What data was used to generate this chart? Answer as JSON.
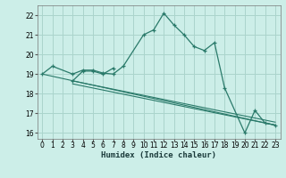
{
  "xlabel": "Humidex (Indice chaleur)",
  "background_color": "#cceee8",
  "grid_color": "#aad4cc",
  "line_color": "#2a7a6a",
  "xlim": [
    -0.5,
    23.5
  ],
  "ylim": [
    15.7,
    22.5
  ],
  "xticks": [
    0,
    1,
    2,
    3,
    4,
    5,
    6,
    7,
    8,
    9,
    10,
    11,
    12,
    13,
    14,
    15,
    16,
    17,
    18,
    19,
    20,
    21,
    22,
    23
  ],
  "yticks": [
    16,
    17,
    18,
    19,
    20,
    21,
    22
  ],
  "line1": {
    "x": [
      0,
      1,
      3,
      4,
      5,
      6,
      7,
      8,
      10,
      11,
      12,
      13,
      14,
      15,
      16,
      17,
      18,
      20,
      21,
      22,
      23
    ],
    "y": [
      19.0,
      19.4,
      19.0,
      19.2,
      19.2,
      19.05,
      19.0,
      19.4,
      21.0,
      21.25,
      22.1,
      21.5,
      21.0,
      20.4,
      20.2,
      20.6,
      18.3,
      16.0,
      17.15,
      16.5,
      16.4
    ]
  },
  "line2": {
    "x": [
      3,
      4,
      5,
      6,
      7
    ],
    "y": [
      18.65,
      19.15,
      19.15,
      19.0,
      19.3
    ]
  },
  "line3": {
    "x": [
      0,
      23
    ],
    "y": [
      19.0,
      16.4
    ]
  },
  "line4": {
    "x": [
      3,
      23
    ],
    "y": [
      18.65,
      16.55
    ]
  },
  "line5": {
    "x": [
      3,
      23
    ],
    "y": [
      18.5,
      16.4
    ]
  }
}
